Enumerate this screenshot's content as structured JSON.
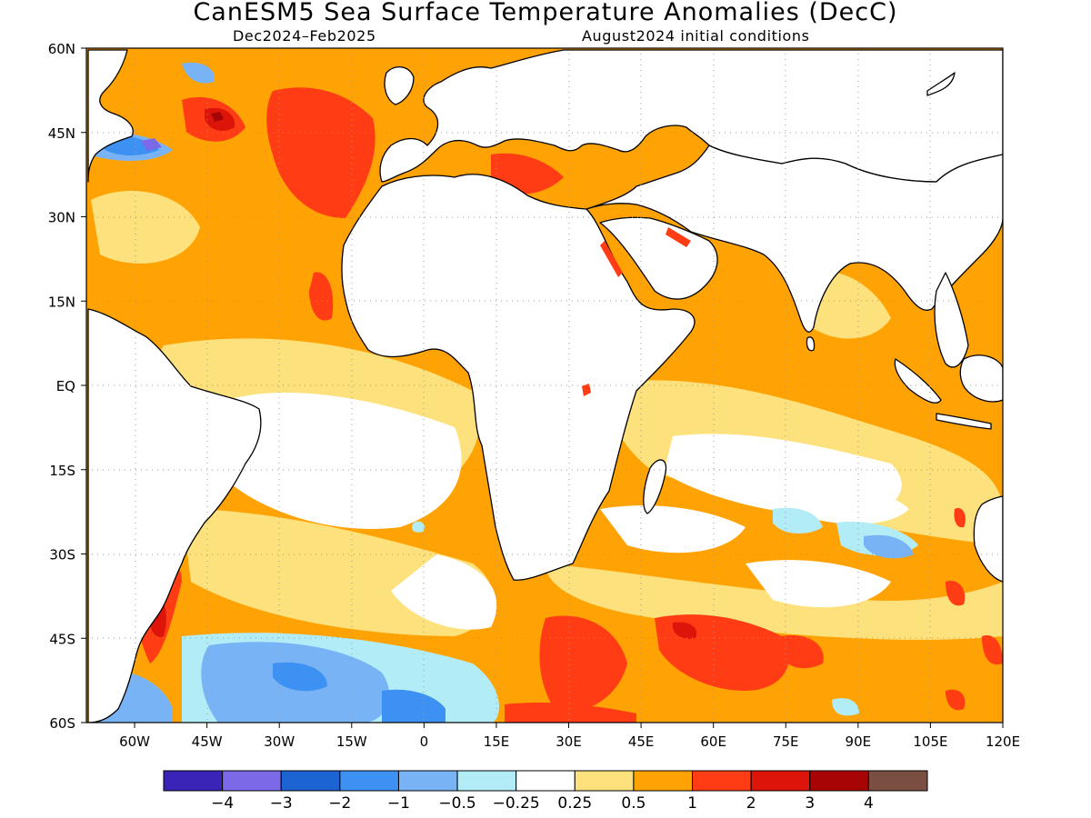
{
  "title": "CanESM5 Sea Surface Temperature Anomalies (DecC)",
  "subtitle_left": "Dec2024–Feb2025",
  "subtitle_right": "August2024 initial conditions",
  "x_ticks": [
    "60W",
    "45W",
    "30W",
    "15W",
    "0",
    "15E",
    "30E",
    "45E",
    "60E",
    "75E",
    "90E",
    "105E",
    "120E"
  ],
  "y_ticks": [
    "60N",
    "45N",
    "30N",
    "15N",
    "EQ",
    "15S",
    "30S",
    "45S",
    "60S"
  ],
  "colorbar": {
    "colors": [
      "#3a24b8",
      "#7b69e8",
      "#1c64d2",
      "#3c91f2",
      "#78b4f5",
      "#b2ecf6",
      "#ffffff",
      "#fde17c",
      "#ffa305",
      "#ff3c14",
      "#dc1409",
      "#a70505",
      "#7a4e40"
    ],
    "labels": [
      "−4",
      "−3",
      "−2",
      "−1",
      "−0.5",
      "−0.25",
      "0.25",
      "0.5",
      "1",
      "2",
      "3",
      "4"
    ]
  },
  "map": {
    "lon_range": [
      -70,
      120
    ],
    "lat_range": [
      -60,
      60
    ],
    "fill": "#ffa305",
    "continent_fill": "#ffffff",
    "coastline_color": "#000000"
  }
}
